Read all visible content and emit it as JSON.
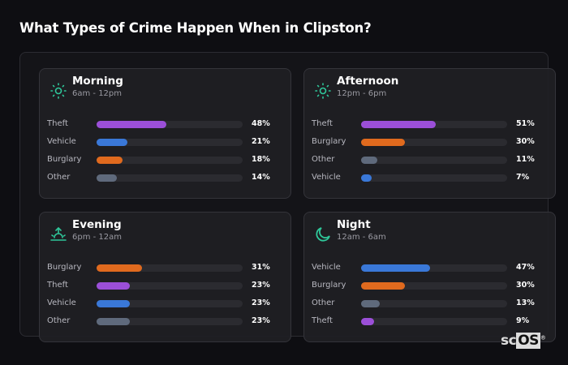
{
  "title": "What Types of Crime Happen When in Clipston?",
  "colors": {
    "Theft": "#9b4fd8",
    "Vehicle": "#3a78d8",
    "Burglary": "#e06a1e",
    "Other": "#5f6a7c",
    "accent": "#2fc79a"
  },
  "cards": [
    {
      "name": "Morning",
      "range": "6am - 12pm",
      "icon": "sun-icon",
      "rows": [
        {
          "label": "Theft",
          "value": 48,
          "pct": "48%"
        },
        {
          "label": "Vehicle",
          "value": 21,
          "pct": "21%"
        },
        {
          "label": "Burglary",
          "value": 18,
          "pct": "18%"
        },
        {
          "label": "Other",
          "value": 14,
          "pct": "14%"
        }
      ]
    },
    {
      "name": "Afternoon",
      "range": "12pm - 6pm",
      "icon": "sun-icon",
      "rows": [
        {
          "label": "Theft",
          "value": 51,
          "pct": "51%"
        },
        {
          "label": "Burglary",
          "value": 30,
          "pct": "30%"
        },
        {
          "label": "Other",
          "value": 11,
          "pct": "11%"
        },
        {
          "label": "Vehicle",
          "value": 7,
          "pct": "7%"
        }
      ]
    },
    {
      "name": "Evening",
      "range": "6pm - 12am",
      "icon": "sunset-icon",
      "rows": [
        {
          "label": "Burglary",
          "value": 31,
          "pct": "31%"
        },
        {
          "label": "Theft",
          "value": 23,
          "pct": "23%"
        },
        {
          "label": "Vehicle",
          "value": 23,
          "pct": "23%"
        },
        {
          "label": "Other",
          "value": 23,
          "pct": "23%"
        }
      ]
    },
    {
      "name": "Night",
      "range": "12am - 6am",
      "icon": "moon-icon",
      "rows": [
        {
          "label": "Vehicle",
          "value": 47,
          "pct": "47%"
        },
        {
          "label": "Burglary",
          "value": 30,
          "pct": "30%"
        },
        {
          "label": "Other",
          "value": 13,
          "pct": "13%"
        },
        {
          "label": "Theft",
          "value": 9,
          "pct": "9%"
        }
      ]
    }
  ],
  "logo": {
    "sc": "sc",
    "os": "OS"
  }
}
